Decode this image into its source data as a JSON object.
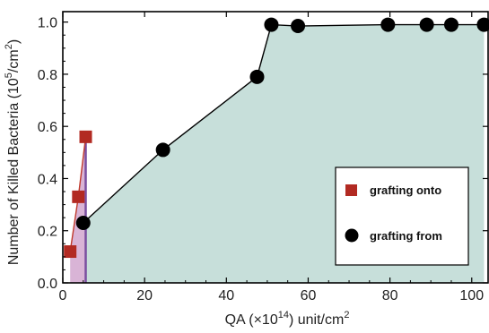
{
  "chart_data": {
    "type": "scatter",
    "xlabel_main": "QA (×10",
    "xlabel_sup": "14",
    "xlabel_tail": ") unit/cm",
    "xlabel_sup2": "2",
    "ylabel_main": "Number of Killed Bacteria (10",
    "ylabel_sup": "5",
    "ylabel_tail": "/cm",
    "ylabel_sup2": "2",
    "ylabel_close": ")",
    "xlim": [
      0,
      104
    ],
    "ylim": [
      0,
      1.04
    ],
    "x_ticks": [
      0,
      20,
      40,
      60,
      80,
      100
    ],
    "y_ticks": [
      0.0,
      0.2,
      0.4,
      0.6,
      0.8,
      1.0
    ],
    "x_tick_labels": [
      "0",
      "20",
      "40",
      "60",
      "80",
      "100"
    ],
    "y_tick_labels": [
      "0.0",
      "0.2",
      "0.4",
      "0.6",
      "0.8",
      "1.0"
    ],
    "legend_position": "right-middle",
    "series": [
      {
        "name": "grafting onto",
        "marker": "square",
        "color": "#b22a22",
        "fill_color": "#d9b4d6",
        "x": [
          1.8,
          3.8,
          5.6
        ],
        "y": [
          0.12,
          0.33,
          0.56
        ]
      },
      {
        "name": "grafting from",
        "marker": "circle",
        "color": "#000000",
        "fill_color": "#c7dfda",
        "x": [
          5.0,
          24.5,
          47.5,
          51.0,
          57.5,
          79.5,
          89.0,
          95.0,
          103.0
        ],
        "y": [
          0.23,
          0.51,
          0.79,
          0.99,
          0.985,
          0.99,
          0.99,
          0.99,
          0.99
        ]
      }
    ]
  }
}
